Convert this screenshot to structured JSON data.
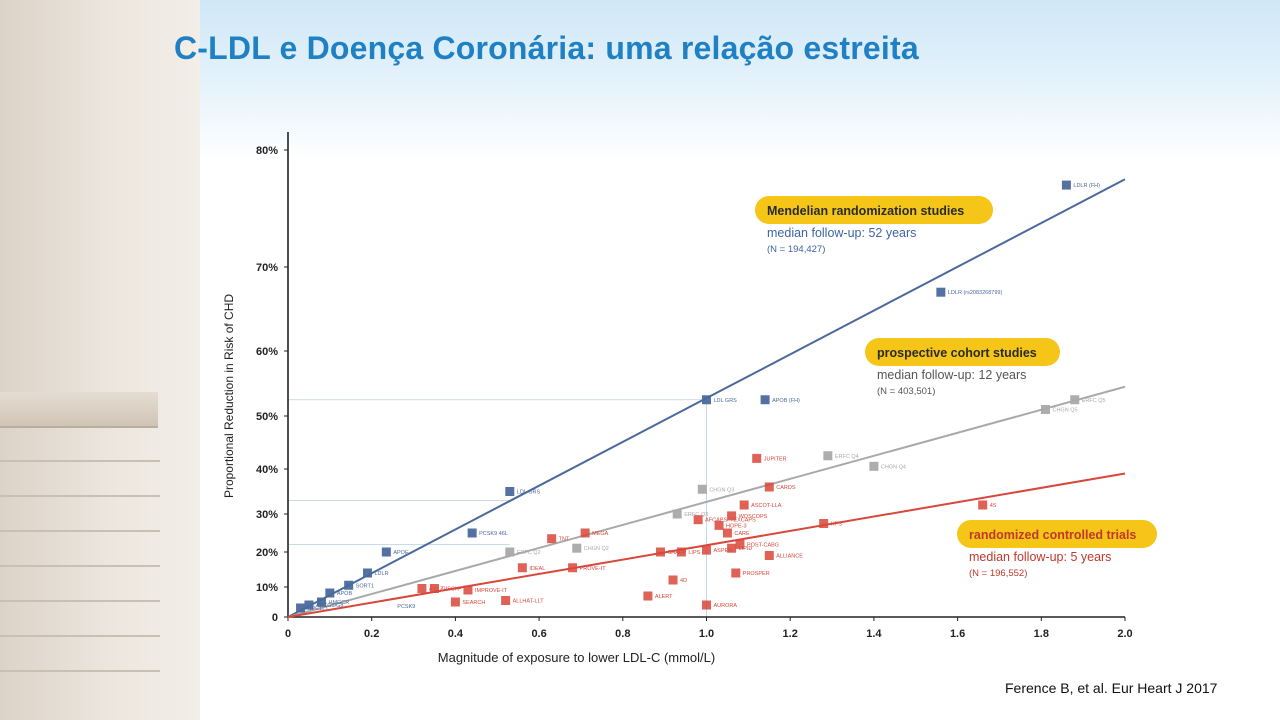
{
  "slide": {
    "title": "C-LDL e Doença Coronária: uma relação estreita",
    "citation": "Ference B, et al. Eur Heart J 2017"
  },
  "colors": {
    "title": "#1f80c4",
    "mendelian": "#4a6a9c",
    "cohort": "#a9a9a9",
    "rct": "#d9463a",
    "callout_fill": "#f5c518"
  },
  "chart_data": {
    "type": "scatter",
    "xlabel": "Magnitude of exposure to lower LDL-C (mmol/L)",
    "ylabel": "Proportional Reduction in Risk of CHD",
    "xlim": [
      0,
      2.0
    ],
    "x_ticks": [
      "0",
      "0.2",
      "0.4",
      "0.6",
      "0.8",
      "1.0",
      "1.2",
      "1.4",
      "1.6",
      "1.8",
      "2.0"
    ],
    "y_ticks": [
      {
        "label": "0",
        "value": 0
      },
      {
        "label": "10%",
        "value": 10
      },
      {
        "label": "20%",
        "value": 20
      },
      {
        "label": "30%",
        "value": 30
      },
      {
        "label": "40%",
        "value": 40
      },
      {
        "label": "50%",
        "value": 50
      },
      {
        "label": "60%",
        "value": 60
      },
      {
        "label": "70%",
        "value": 70
      },
      {
        "label": "80%",
        "value": 80
      }
    ],
    "series": [
      {
        "name": "Mendelian randomization studies",
        "follow_up": "median follow-up: 52 years",
        "n": "(N = 194,427)",
        "color": "#4a6a9c",
        "line": [
          [
            0,
            0
          ],
          [
            2.0,
            77.5
          ]
        ],
        "points": [
          {
            "x": 0.03,
            "y": 3,
            "label": "NPC1L1"
          },
          {
            "x": 0.05,
            "y": 4,
            "label": "ABCG5/G8"
          },
          {
            "x": 0.08,
            "y": 5,
            "label": "HMGCR"
          },
          {
            "x": 0.1,
            "y": 8,
            "label": "APOB"
          },
          {
            "x": 0.145,
            "y": 10.5,
            "label": "SORT1"
          },
          {
            "x": 0.19,
            "y": 14,
            "label": "LDLR"
          },
          {
            "x": 0.235,
            "y": 20,
            "label": "APOE"
          },
          {
            "x": 0.44,
            "y": 25,
            "label": "PCSK9 46L"
          },
          {
            "x": 0.53,
            "y": 35,
            "label": "LDL GRS"
          },
          {
            "x": 1.0,
            "y": 52.5,
            "label": "LDL GRS"
          },
          {
            "x": 1.14,
            "y": 52.5,
            "label": "APOB (FH)"
          },
          {
            "x": 1.56,
            "y": 67,
            "label": "LDLR (rs2083268799)"
          },
          {
            "x": 1.86,
            "y": 77,
            "label": "LDLR (FH)"
          }
        ]
      },
      {
        "name": "prospective cohort studies",
        "follow_up": "median follow-up: 12 years",
        "n": "(N = 403,501)",
        "color": "#a9a9a9",
        "line": [
          [
            0,
            0
          ],
          [
            2.0,
            54.5
          ]
        ],
        "points": [
          {
            "x": 0.53,
            "y": 20,
            "label": "ERFC Q2"
          },
          {
            "x": 0.69,
            "y": 21,
            "label": "CHGN Q2"
          },
          {
            "x": 0.93,
            "y": 30,
            "label": "ERFC Q3"
          },
          {
            "x": 0.99,
            "y": 35.5,
            "label": "CHGN Q3"
          },
          {
            "x": 1.29,
            "y": 42.5,
            "label": "ERFC Q4"
          },
          {
            "x": 1.4,
            "y": 40.5,
            "label": "CHGN Q4"
          },
          {
            "x": 1.81,
            "y": 51,
            "label": "CHGN Q5"
          },
          {
            "x": 1.88,
            "y": 52.5,
            "label": "ERFC Q5"
          }
        ]
      },
      {
        "name": "randomized controlled trials",
        "follow_up": "median follow-up: 5 years",
        "n": "(N = 196,552)",
        "color": "#d9463a",
        "line": [
          [
            0,
            0
          ],
          [
            2.0,
            39
          ]
        ],
        "points": [
          {
            "x": 0.32,
            "y": 9.5,
            "label": "A to Z"
          },
          {
            "x": 0.35,
            "y": 9.5,
            "label": "GISSI-P"
          },
          {
            "x": 0.4,
            "y": 5,
            "label": "SEARCH"
          },
          {
            "x": 0.43,
            "y": 9,
            "label": "IMPROVE-IT"
          },
          {
            "x": 0.52,
            "y": 5.5,
            "label": "ALLHAT-LLT"
          },
          {
            "x": 0.56,
            "y": 15.5,
            "label": "IDEAL"
          },
          {
            "x": 0.63,
            "y": 23.5,
            "label": "TNT"
          },
          {
            "x": 0.68,
            "y": 15.5,
            "label": "PROVE-IT"
          },
          {
            "x": 0.71,
            "y": 25,
            "label": "MEGA"
          },
          {
            "x": 0.86,
            "y": 7,
            "label": "ALERT"
          },
          {
            "x": 0.89,
            "y": 20,
            "label": "SHARP"
          },
          {
            "x": 0.92,
            "y": 12,
            "label": "4D"
          },
          {
            "x": 0.94,
            "y": 20,
            "label": "LIPS"
          },
          {
            "x": 0.98,
            "y": 28.5,
            "label": "AFCAPS/ TEXCAPS"
          },
          {
            "x": 1.0,
            "y": 20.5,
            "label": "ASPEN"
          },
          {
            "x": 1.0,
            "y": 4,
            "label": "AURORA"
          },
          {
            "x": 1.03,
            "y": 27,
            "label": "HOPE-3"
          },
          {
            "x": 1.05,
            "y": 25,
            "label": "CARE"
          },
          {
            "x": 1.06,
            "y": 29.5,
            "label": "WOSCOPS"
          },
          {
            "x": 1.06,
            "y": 21,
            "label": "LIPID"
          },
          {
            "x": 1.07,
            "y": 14,
            "label": "PROSPER"
          },
          {
            "x": 1.08,
            "y": 22,
            "label": "POST-CABG"
          },
          {
            "x": 1.09,
            "y": 32,
            "label": "ASCOT-LLA"
          },
          {
            "x": 1.12,
            "y": 42,
            "label": "JUPITER"
          },
          {
            "x": 1.15,
            "y": 36,
            "label": "CARDS"
          },
          {
            "x": 1.15,
            "y": 19,
            "label": "ALLIANCE"
          },
          {
            "x": 1.28,
            "y": 27.5,
            "label": "HPS"
          },
          {
            "x": 1.66,
            "y": 32,
            "label": "4S"
          }
        ]
      }
    ],
    "unlabeled_points": [
      {
        "x": 0.07,
        "y": 2,
        "label": "PCSK9"
      }
    ]
  }
}
